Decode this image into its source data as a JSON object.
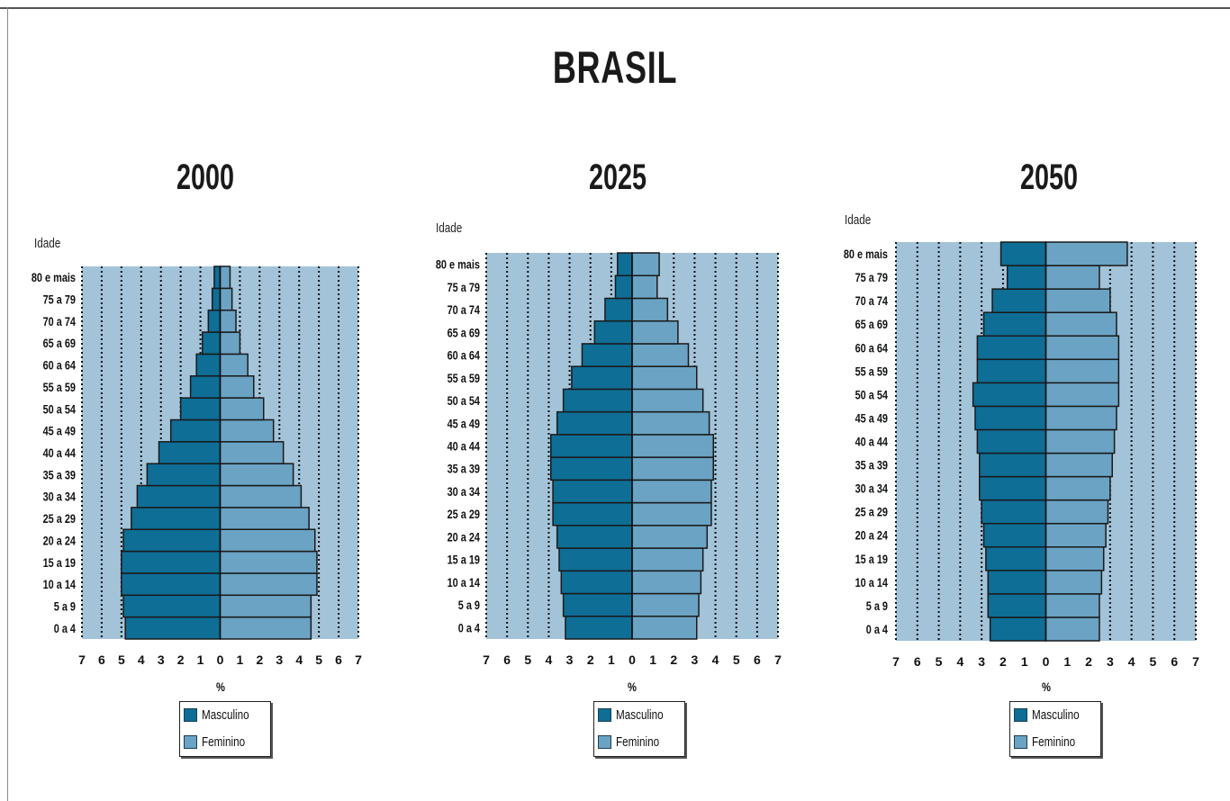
{
  "title": "BRASIL",
  "colors": {
    "masculino": "#0e6e96",
    "feminino": "#6aa3c4",
    "plot_bg": "#a3c3d8",
    "bar_border": "#1a1a1a"
  },
  "legend": {
    "masculino": "Masculino",
    "feminino": "Feminino"
  },
  "chart_data": [
    {
      "type": "bar",
      "title": "2000",
      "ylabel": "Idade",
      "xlabel": "%",
      "xlim": [
        -7,
        7
      ],
      "xticks": [
        "7",
        "6",
        "5",
        "4",
        "3",
        "2",
        "1",
        "0",
        "1",
        "2",
        "3",
        "4",
        "5",
        "6",
        "7"
      ],
      "categories": [
        "0 a 4",
        "5 a 9",
        "10 a 14",
        "15 a 19",
        "20 a 24",
        "25 a 29",
        "30 a 34",
        "35 a 39",
        "40 a 44",
        "45 a 49",
        "50 a 54",
        "55 a 59",
        "60 a 64",
        "65 a 69",
        "70 a 74",
        "75 a 79",
        "80 e mais"
      ],
      "series": [
        {
          "name": "Masculino",
          "values": [
            4.8,
            4.9,
            5.0,
            5.0,
            4.9,
            4.5,
            4.2,
            3.7,
            3.1,
            2.5,
            2.0,
            1.5,
            1.2,
            0.9,
            0.6,
            0.4,
            0.3
          ]
        },
        {
          "name": "Feminino",
          "values": [
            4.6,
            4.6,
            4.9,
            4.9,
            4.8,
            4.5,
            4.1,
            3.7,
            3.2,
            2.7,
            2.2,
            1.7,
            1.4,
            1.0,
            0.8,
            0.6,
            0.5
          ]
        }
      ]
    },
    {
      "type": "bar",
      "title": "2025",
      "ylabel": "Idade",
      "xlabel": "%",
      "xlim": [
        -7,
        7
      ],
      "xticks": [
        "7",
        "6",
        "5",
        "4",
        "3",
        "2",
        "1",
        "0",
        "1",
        "2",
        "3",
        "4",
        "5",
        "6",
        "7"
      ],
      "categories": [
        "0 a 4",
        "5 a 9",
        "10 a 14",
        "15 a 19",
        "20 a 24",
        "25 a 29",
        "30 a 34",
        "35 a 39",
        "40 a 44",
        "45 a 49",
        "50 a 54",
        "55 a 59",
        "60 a 64",
        "65 a 69",
        "70 a 74",
        "75 a 79",
        "80 e mais"
      ],
      "series": [
        {
          "name": "Masculino",
          "values": [
            3.2,
            3.3,
            3.4,
            3.5,
            3.6,
            3.8,
            3.8,
            3.9,
            3.9,
            3.6,
            3.3,
            2.9,
            2.4,
            1.8,
            1.3,
            0.8,
            0.7
          ]
        },
        {
          "name": "Feminino",
          "values": [
            3.1,
            3.2,
            3.3,
            3.4,
            3.6,
            3.8,
            3.8,
            3.9,
            3.9,
            3.7,
            3.4,
            3.1,
            2.7,
            2.2,
            1.7,
            1.2,
            1.3
          ]
        }
      ]
    },
    {
      "type": "bar",
      "title": "2050",
      "ylabel": "Idade",
      "xlabel": "%",
      "xlim": [
        -7,
        7
      ],
      "xticks": [
        "7",
        "6",
        "5",
        "4",
        "3",
        "2",
        "1",
        "0",
        "1",
        "2",
        "3",
        "4",
        "5",
        "6",
        "7"
      ],
      "categories": [
        "0 a 4",
        "5 a 9",
        "10 a 14",
        "15 a 19",
        "20 a 24",
        "25 a 29",
        "30 a 34",
        "35 a 39",
        "40 a 44",
        "45 a 49",
        "50 a 54",
        "55 a 59",
        "60 a 64",
        "65 a 69",
        "70 a 74",
        "75 a 79",
        "80 e mais"
      ],
      "series": [
        {
          "name": "Masculino",
          "values": [
            2.6,
            2.7,
            2.7,
            2.8,
            2.9,
            3.0,
            3.1,
            3.1,
            3.2,
            3.3,
            3.4,
            3.2,
            3.2,
            2.9,
            2.5,
            1.8,
            2.1
          ]
        },
        {
          "name": "Feminino",
          "values": [
            2.5,
            2.5,
            2.6,
            2.7,
            2.8,
            2.9,
            3.0,
            3.1,
            3.2,
            3.3,
            3.4,
            3.4,
            3.4,
            3.3,
            3.0,
            2.5,
            3.8
          ]
        }
      ]
    }
  ]
}
